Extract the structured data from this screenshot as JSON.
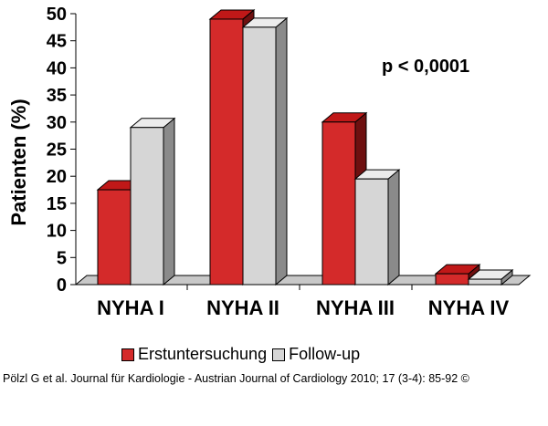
{
  "chart_data": {
    "type": "bar",
    "categories": [
      "NYHA I",
      "NYHA II",
      "NYHA III",
      "NYHA IV"
    ],
    "series": [
      {
        "name": "Erstuntersuchung",
        "values": [
          17.5,
          49,
          30,
          2
        ]
      },
      {
        "name": "Follow-up",
        "values": [
          29,
          47.5,
          19.5,
          1
        ]
      }
    ],
    "y_ticks": [
      "0",
      "5",
      "10",
      "15",
      "20",
      "25",
      "30",
      "35",
      "40",
      "45",
      "50"
    ],
    "ylabel": "Patienten (%)",
    "xlabel": "",
    "ylim": [
      0,
      50
    ],
    "annotation": "p < 0,0001",
    "legend_position": "bottom",
    "grid": false,
    "colors": {
      "series": [
        "#d42a2a",
        "#d6d6d6"
      ],
      "series_side": [
        "#6e1010",
        "#8a8a8a"
      ],
      "series_top": [
        "#c01818",
        "#ececec"
      ],
      "floor": "#c8c8c8",
      "wall": "#ffffff"
    }
  },
  "citation": "Pölzl G et al. Journal für Kardiologie - Austrian Journal of Cardiology 2010; 17 (3-4): 85-92 ©"
}
